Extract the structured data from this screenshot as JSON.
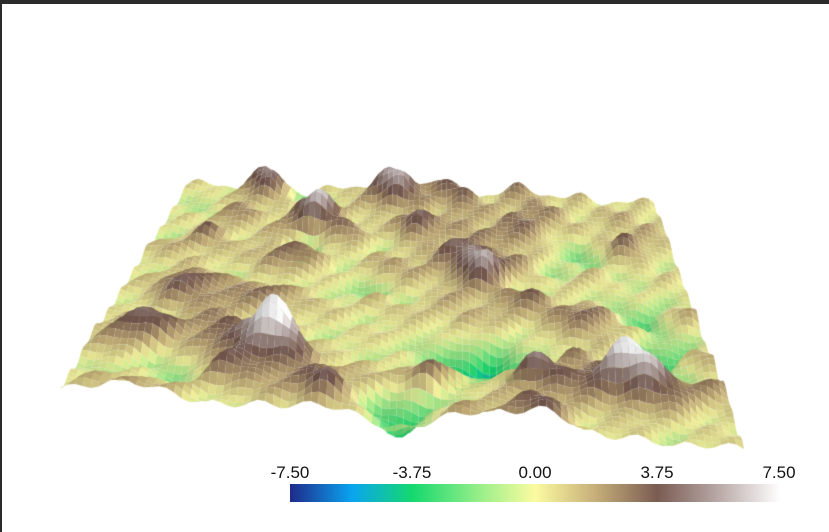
{
  "colormap": {
    "ticks": [
      "-7.50",
      "-3.75",
      "0.00",
      "3.75",
      "7.50"
    ],
    "range": [
      -7.5,
      7.5
    ],
    "stops": [
      {
        "value": -7.5,
        "color": "#1f2a8a"
      },
      {
        "value": -5.6,
        "color": "#0aa4f0"
      },
      {
        "value": -3.75,
        "color": "#15d96e"
      },
      {
        "value": -1.5,
        "color": "#a4f08c"
      },
      {
        "value": 0.0,
        "color": "#fbfba0"
      },
      {
        "value": 1.8,
        "color": "#c8b07a"
      },
      {
        "value": 3.75,
        "color": "#7a5c52"
      },
      {
        "value": 5.6,
        "color": "#b8a8a6"
      },
      {
        "value": 7.5,
        "color": "#ffffff"
      }
    ]
  },
  "colors": {
    "frame": "#2b2b2b",
    "background": "#ffffff"
  }
}
